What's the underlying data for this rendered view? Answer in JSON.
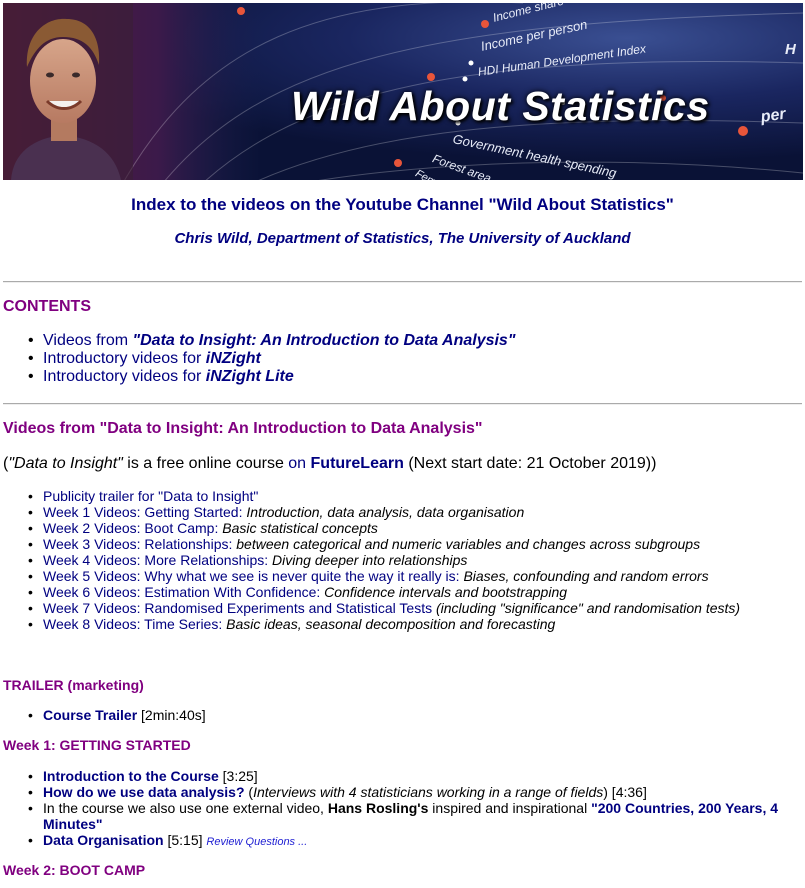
{
  "banner": {
    "title": "Wild About Statistics",
    "bg_words": [
      "Income share",
      "Income per person",
      "HDI Human Development Index",
      "Government health spending",
      "Forest area",
      "Fem",
      "per",
      "H"
    ]
  },
  "header": {
    "title": "Index to the videos on the Youtube Channel \"Wild About Statistics\"",
    "subtitle": "Chris Wild, Department of Statistics, The University of Auckland"
  },
  "contents": {
    "heading": "CONTENTS",
    "items": [
      {
        "prefix": "Videos from ",
        "emph": "\"Data to Insight: An Introduction to Data Analysis\""
      },
      {
        "prefix": "Introductory videos for ",
        "emph": "iNZight"
      },
      {
        "prefix": "Introductory videos for ",
        "emph": "iNZight Lite"
      }
    ]
  },
  "d2i": {
    "heading": "Videos from \"Data to Insight: An Introduction to Data Analysis\"",
    "intro": {
      "open": "(",
      "course": "\"Data to Insight\"",
      "mid": " is a free online course ",
      "on": "on",
      "provider": "FutureLearn",
      "tail": " (Next start date: 21 October 2019))"
    },
    "weeks": [
      {
        "link": "Publicity trailer for \"Data to Insight\"",
        "desc": ""
      },
      {
        "link": "Week 1 Videos: Getting Started:",
        "desc": " Introduction, data analysis, data organisation"
      },
      {
        "link": "Week 2 Videos: Boot Camp:",
        "desc": " Basic statistical concepts"
      },
      {
        "link": "Week 3 Videos: Relationships:",
        "desc": " between categorical and numeric variables and changes across subgroups"
      },
      {
        "link": "Week 4 Videos: More Relationships:",
        "desc": " Diving deeper into relationships"
      },
      {
        "link": "Week 5 Videos: Why what we see is never quite the way it really is:",
        "desc": " Biases, confounding and random errors"
      },
      {
        "link": "Week 6 Videos: Estimation With Confidence:",
        "desc": " Confidence intervals and bootstrapping"
      },
      {
        "link": "Week 7 Videos: Randomised Experiments and Statistical Tests",
        "desc": " (including \"significance\" and randomisation tests)"
      },
      {
        "link": "Week 8 Videos: Time Series:",
        "desc": " Basic ideas, seasonal decomposition and forecasting"
      }
    ]
  },
  "trailer": {
    "heading": "TRAILER (marketing)",
    "item": {
      "link": "Course Trailer",
      "dur": " [2min:40s]"
    }
  },
  "week1": {
    "heading": "Week 1: GETTING STARTED",
    "items": {
      "intro": {
        "link": "Introduction to the Course",
        "dur": " [3:25]"
      },
      "how": {
        "link": "How do we use data analysis?",
        "open": " (",
        "desc": "Interviews with 4 statisticians working in a range of fields",
        "dur": ") [4:36]"
      },
      "ext": {
        "pre": "In the course we also use one external video, ",
        "who": "Hans Rosling's",
        "mid": " inspired and inspirational ",
        "link": "\"200 Countries, 200 Years, 4 Minutes\""
      },
      "org": {
        "link": "Data Organisation",
        "dur": " [5:15] ",
        "review": "Review Questions ..."
      }
    }
  },
  "week2": {
    "heading": "Week 2: BOOT CAMP"
  },
  "colors": {
    "navy": "#000080",
    "purple": "#800080",
    "review_blue": "#1e1ed2",
    "banner_bg": "#0d1840"
  }
}
